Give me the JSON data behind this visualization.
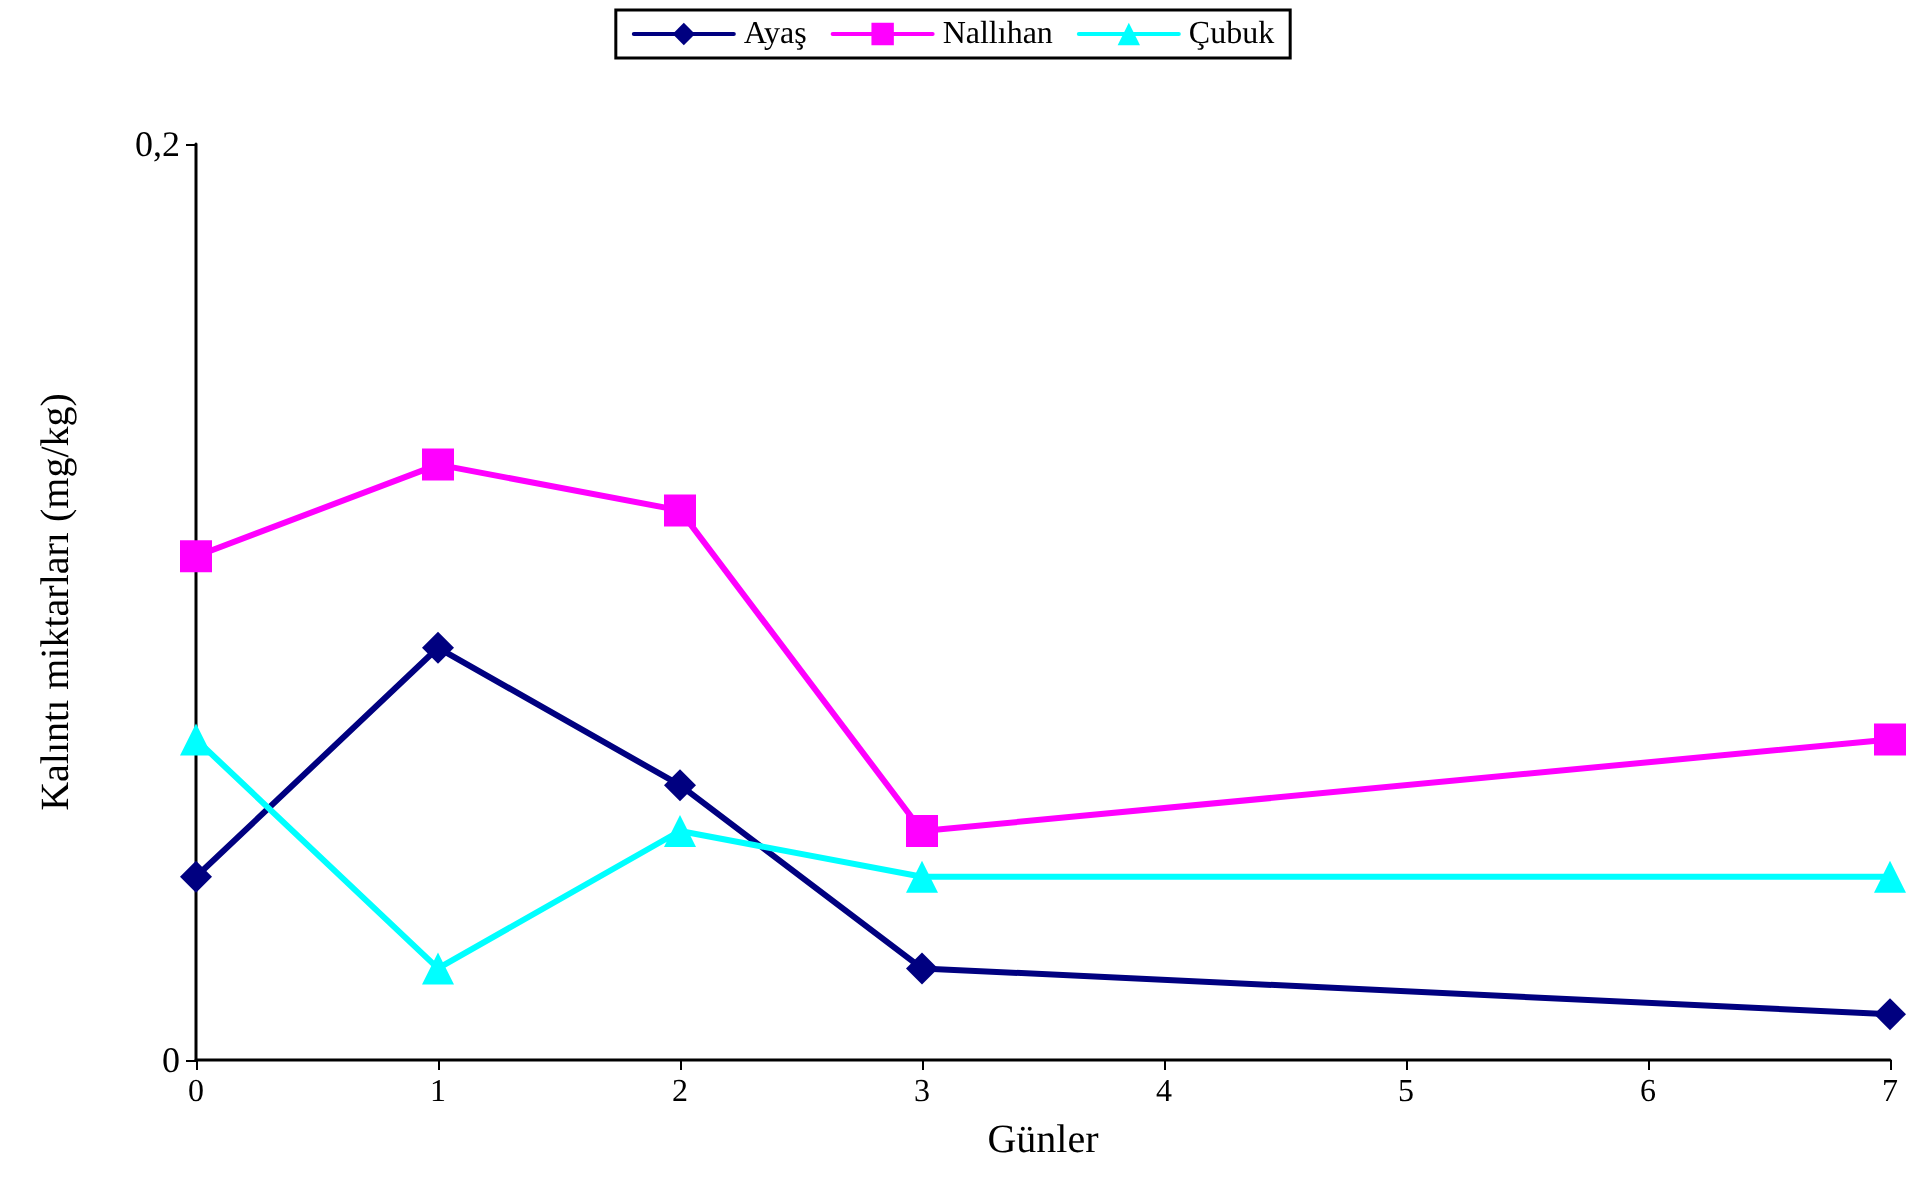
{
  "chart_data": {
    "type": "line",
    "xlabel": "Günler",
    "ylabel": "Kalıntı miktarları (mg/kg)",
    "x": [
      0,
      1,
      2,
      3,
      7
    ],
    "series": [
      {
        "name": "Ayaş",
        "color": "#000080",
        "marker": "diamond",
        "values": [
          0.04,
          0.09,
          0.06,
          0.02,
          0.01
        ]
      },
      {
        "name": "Nallıhan",
        "color": "#ff00ff",
        "marker": "square",
        "values": [
          0.11,
          0.13,
          0.12,
          0.05,
          0.07
        ]
      },
      {
        "name": "Çubuk",
        "color": "#00ffff",
        "marker": "triangle",
        "values": [
          0.07,
          0.02,
          0.05,
          0.04,
          0.04
        ]
      }
    ],
    "xlim": [
      0,
      7
    ],
    "xticks": [
      0,
      1,
      2,
      3,
      4,
      5,
      6,
      7
    ],
    "ylim": [
      0,
      0.2
    ],
    "yticks": [
      0,
      {
        "value": 0.2,
        "label": "0,2"
      }
    ],
    "grid": false,
    "legend": "top"
  }
}
